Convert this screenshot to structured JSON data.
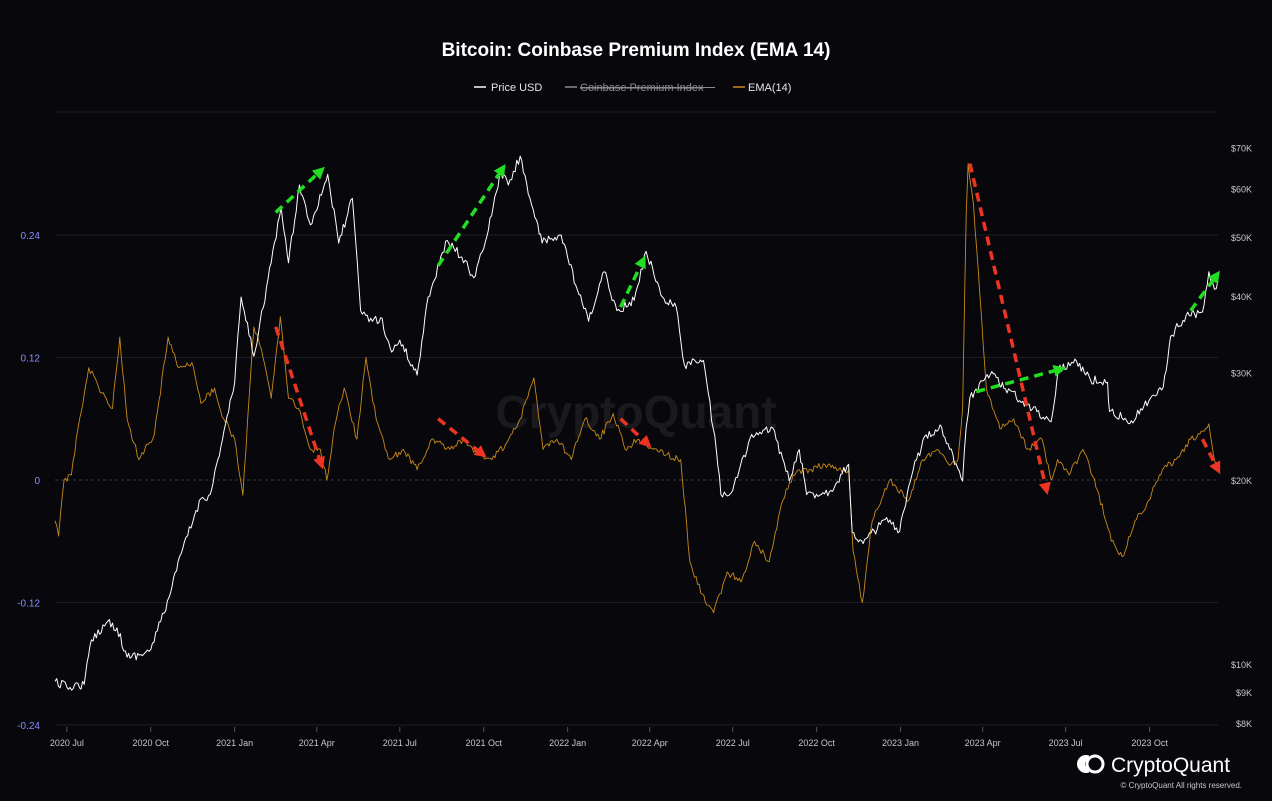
{
  "chart_data": {
    "type": "line",
    "title": "Bitcoin: Coinbase Premium Index (EMA 14)",
    "legend": [
      {
        "label": "Price USD",
        "color": "#ffffff",
        "struck": false
      },
      {
        "label": "Coinbase Premium Index",
        "color": "#8c8c8c",
        "struck": true
      },
      {
        "label": "EMA(14)",
        "color": "#c78a1a",
        "struck": false
      }
    ],
    "legend_position": "top-center",
    "x_ticks": [
      "2020 Jul",
      "2020 Oct",
      "2021 Jan",
      "2021 Apr",
      "2021 Jul",
      "2021 Oct",
      "2022 Jan",
      "2022 Apr",
      "2022 Jul",
      "2022 Oct",
      "2023 Jan",
      "2023 Apr",
      "2023 Jul",
      "2023 Oct"
    ],
    "x_range": [
      "2020-06-18",
      "2023-12-15"
    ],
    "left_axis": {
      "ticks": [
        "0.24",
        "0.12",
        "0",
        "-0.12",
        "-0.24"
      ],
      "tick_values": [
        0.24,
        0.12,
        0,
        -0.12,
        -0.24
      ],
      "range": [
        -0.24,
        0.36
      ],
      "color": "#8a8dff"
    },
    "right_axis": {
      "scale": "log",
      "ticks": [
        "$70K",
        "$60K",
        "$50K",
        "$40K",
        "$30K",
        "$20K",
        "$10K",
        "$9K",
        "$8K"
      ],
      "tick_values": [
        70000,
        60000,
        50000,
        40000,
        30000,
        20000,
        10000,
        9000,
        8000
      ],
      "range": [
        8000,
        78000
      ]
    },
    "grid": true,
    "series": [
      {
        "name": "Price USD",
        "axis": "right",
        "color": "#ffffff",
        "points": [
          [
            "2020-06-18",
            9400
          ],
          [
            "2020-07-01",
            9200
          ],
          [
            "2020-07-20",
            9300
          ],
          [
            "2020-07-28",
            11000
          ],
          [
            "2020-08-15",
            11800
          ],
          [
            "2020-08-25",
            11500
          ],
          [
            "2020-09-05",
            10300
          ],
          [
            "2020-09-20",
            10400
          ],
          [
            "2020-10-01",
            10600
          ],
          [
            "2020-10-21",
            12900
          ],
          [
            "2020-11-05",
            15500
          ],
          [
            "2020-11-25",
            18700
          ],
          [
            "2020-12-05",
            19000
          ],
          [
            "2020-12-17",
            22800
          ],
          [
            "2021-01-01",
            29000
          ],
          [
            "2021-01-08",
            40000
          ],
          [
            "2021-01-22",
            32000
          ],
          [
            "2021-02-10",
            45500
          ],
          [
            "2021-02-21",
            56000
          ],
          [
            "2021-03-01",
            45500
          ],
          [
            "2021-03-13",
            61000
          ],
          [
            "2021-03-25",
            52500
          ],
          [
            "2021-04-13",
            63500
          ],
          [
            "2021-04-25",
            49000
          ],
          [
            "2021-05-10",
            58000
          ],
          [
            "2021-05-19",
            38000
          ],
          [
            "2021-06-01",
            36500
          ],
          [
            "2021-06-10",
            37000
          ],
          [
            "2021-06-22",
            32500
          ],
          [
            "2021-07-01",
            34000
          ],
          [
            "2021-07-20",
            29800
          ],
          [
            "2021-08-01",
            40000
          ],
          [
            "2021-08-22",
            49500
          ],
          [
            "2021-09-07",
            46500
          ],
          [
            "2021-09-20",
            43000
          ],
          [
            "2021-10-01",
            48000
          ],
          [
            "2021-10-20",
            64000
          ],
          [
            "2021-10-28",
            61000
          ],
          [
            "2021-11-10",
            68000
          ],
          [
            "2021-11-26",
            54000
          ],
          [
            "2021-12-04",
            49000
          ],
          [
            "2021-12-25",
            50500
          ],
          [
            "2022-01-10",
            41800
          ],
          [
            "2022-01-24",
            36500
          ],
          [
            "2022-02-10",
            44000
          ],
          [
            "2022-02-24",
            38000
          ],
          [
            "2022-03-15",
            39500
          ],
          [
            "2022-03-28",
            47500
          ],
          [
            "2022-04-15",
            40000
          ],
          [
            "2022-04-30",
            38500
          ],
          [
            "2022-05-09",
            31000
          ],
          [
            "2022-05-30",
            31500
          ],
          [
            "2022-06-13",
            22500
          ],
          [
            "2022-06-18",
            19000
          ],
          [
            "2022-07-01",
            19300
          ],
          [
            "2022-07-20",
            23500
          ],
          [
            "2022-08-14",
            24400
          ],
          [
            "2022-09-01",
            20000
          ],
          [
            "2022-09-12",
            22500
          ],
          [
            "2022-09-20",
            19000
          ],
          [
            "2022-10-15",
            19200
          ],
          [
            "2022-11-05",
            21300
          ],
          [
            "2022-11-09",
            16500
          ],
          [
            "2022-11-21",
            15800
          ],
          [
            "2022-12-15",
            17300
          ],
          [
            "2022-12-31",
            16550
          ],
          [
            "2023-01-15",
            20900
          ],
          [
            "2023-01-29",
            23800
          ],
          [
            "2023-02-15",
            24500
          ],
          [
            "2023-03-10",
            20000
          ],
          [
            "2023-03-14",
            24500
          ],
          [
            "2023-03-18",
            27400
          ],
          [
            "2023-04-11",
            30200
          ],
          [
            "2023-04-26",
            28300
          ],
          [
            "2023-05-15",
            27000
          ],
          [
            "2023-06-15",
            25000
          ],
          [
            "2023-06-23",
            30500
          ],
          [
            "2023-07-13",
            31400
          ],
          [
            "2023-07-28",
            29300
          ],
          [
            "2023-08-16",
            29000
          ],
          [
            "2023-08-18",
            26000
          ],
          [
            "2023-09-11",
            25100
          ],
          [
            "2023-09-30",
            27000
          ],
          [
            "2023-10-16",
            28500
          ],
          [
            "2023-10-24",
            34500
          ],
          [
            "2023-11-10",
            37300
          ],
          [
            "2023-11-28",
            37800
          ],
          [
            "2023-12-05",
            44000
          ],
          [
            "2023-12-11",
            41200
          ],
          [
            "2023-12-15",
            42500
          ]
        ]
      },
      {
        "name": "EMA(14)",
        "axis": "left",
        "color": "#c78a1a",
        "points": [
          [
            "2020-06-18",
            -0.04
          ],
          [
            "2020-06-22",
            -0.055
          ],
          [
            "2020-06-28",
            0.0
          ],
          [
            "2020-07-06",
            0.005
          ],
          [
            "2020-07-15",
            0.06
          ],
          [
            "2020-07-25",
            0.11
          ],
          [
            "2020-08-05",
            0.09
          ],
          [
            "2020-08-20",
            0.07
          ],
          [
            "2020-08-28",
            0.14
          ],
          [
            "2020-09-05",
            0.06
          ],
          [
            "2020-09-18",
            0.02
          ],
          [
            "2020-10-05",
            0.045
          ],
          [
            "2020-10-20",
            0.14
          ],
          [
            "2020-11-01",
            0.11
          ],
          [
            "2020-11-15",
            0.115
          ],
          [
            "2020-11-25",
            0.075
          ],
          [
            "2020-12-10",
            0.09
          ],
          [
            "2020-12-20",
            0.06
          ],
          [
            "2021-01-01",
            0.04
          ],
          [
            "2021-01-10",
            -0.015
          ],
          [
            "2021-01-22",
            0.15
          ],
          [
            "2021-02-01",
            0.12
          ],
          [
            "2021-02-10",
            0.08
          ],
          [
            "2021-02-20",
            0.16
          ],
          [
            "2021-03-01",
            0.08
          ],
          [
            "2021-03-12",
            0.07
          ],
          [
            "2021-03-25",
            0.03
          ],
          [
            "2021-04-05",
            0.03
          ],
          [
            "2021-04-12",
            0.0
          ],
          [
            "2021-04-20",
            0.05
          ],
          [
            "2021-05-01",
            0.09
          ],
          [
            "2021-05-15",
            0.04
          ],
          [
            "2021-05-25",
            0.12
          ],
          [
            "2021-06-05",
            0.06
          ],
          [
            "2021-06-20",
            0.02
          ],
          [
            "2021-07-05",
            0.03
          ],
          [
            "2021-07-20",
            0.01
          ],
          [
            "2021-08-05",
            0.04
          ],
          [
            "2021-08-25",
            0.03
          ],
          [
            "2021-09-10",
            0.04
          ],
          [
            "2021-09-25",
            0.025
          ],
          [
            "2021-10-10",
            0.02
          ],
          [
            "2021-10-25",
            0.035
          ],
          [
            "2021-11-10",
            0.06
          ],
          [
            "2021-11-25",
            0.1
          ],
          [
            "2021-12-05",
            0.03
          ],
          [
            "2021-12-20",
            0.04
          ],
          [
            "2022-01-05",
            0.02
          ],
          [
            "2022-01-20",
            0.06
          ],
          [
            "2022-02-05",
            0.04
          ],
          [
            "2022-02-20",
            0.065
          ],
          [
            "2022-03-05",
            0.03
          ],
          [
            "2022-03-20",
            0.04
          ],
          [
            "2022-04-05",
            0.03
          ],
          [
            "2022-04-20",
            0.025
          ],
          [
            "2022-05-05",
            0.02
          ],
          [
            "2022-05-15",
            -0.08
          ],
          [
            "2022-06-01",
            -0.12
          ],
          [
            "2022-06-10",
            -0.13
          ],
          [
            "2022-06-25",
            -0.09
          ],
          [
            "2022-07-10",
            -0.1
          ],
          [
            "2022-07-25",
            -0.06
          ],
          [
            "2022-08-10",
            -0.08
          ],
          [
            "2022-08-25",
            -0.02
          ],
          [
            "2022-09-05",
            0.005
          ],
          [
            "2022-09-25",
            0.01
          ],
          [
            "2022-10-10",
            0.015
          ],
          [
            "2022-10-25",
            0.01
          ],
          [
            "2022-11-05",
            0.01
          ],
          [
            "2022-11-10",
            -0.07
          ],
          [
            "2022-11-20",
            -0.12
          ],
          [
            "2022-12-01",
            -0.04
          ],
          [
            "2022-12-20",
            0.0
          ],
          [
            "2023-01-10",
            -0.02
          ],
          [
            "2023-01-25",
            0.02
          ],
          [
            "2023-02-10",
            0.03
          ],
          [
            "2023-02-25",
            0.015
          ],
          [
            "2023-03-05",
            0.02
          ],
          [
            "2023-03-10",
            0.07
          ],
          [
            "2023-03-14",
            0.26
          ],
          [
            "2023-03-16",
            0.31
          ],
          [
            "2023-03-22",
            0.27
          ],
          [
            "2023-04-05",
            0.09
          ],
          [
            "2023-04-20",
            0.05
          ],
          [
            "2023-05-05",
            0.06
          ],
          [
            "2023-05-20",
            0.03
          ],
          [
            "2023-06-05",
            0.04
          ],
          [
            "2023-06-15",
            0.0
          ],
          [
            "2023-06-22",
            0.02
          ],
          [
            "2023-07-05",
            0.005
          ],
          [
            "2023-07-20",
            0.03
          ],
          [
            "2023-08-05",
            -0.01
          ],
          [
            "2023-08-20",
            -0.06
          ],
          [
            "2023-09-01",
            -0.075
          ],
          [
            "2023-09-15",
            -0.04
          ],
          [
            "2023-09-30",
            -0.02
          ],
          [
            "2023-10-15",
            0.01
          ],
          [
            "2023-10-30",
            0.02
          ],
          [
            "2023-11-15",
            0.04
          ],
          [
            "2023-11-25",
            0.045
          ],
          [
            "2023-12-05",
            0.055
          ],
          [
            "2023-12-10",
            0.025
          ],
          [
            "2023-12-15",
            0.01
          ]
        ]
      }
    ],
    "annotations": {
      "green_arrows": [
        [
          [
            "2021-02-15",
            55000
          ],
          [
            "2021-04-06",
            64500
          ]
        ],
        [
          [
            "2021-08-12",
            45000
          ],
          [
            "2021-10-22",
            65000
          ]
        ],
        [
          [
            "2022-02-28",
            38500
          ],
          [
            "2022-03-25",
            46000
          ]
        ],
        [
          [
            "2023-03-25",
            28000
          ],
          [
            "2023-06-26",
            30500
          ]
        ],
        [
          [
            "2023-11-15",
            38000
          ],
          [
            "2023-12-14",
            43500
          ]
        ]
      ],
      "red_arrows": [
        [
          [
            "2021-02-15",
            0.15
          ],
          [
            "2021-04-06",
            0.015
          ]
        ],
        [
          [
            "2021-08-12",
            0.06
          ],
          [
            "2021-09-30",
            0.025
          ]
        ],
        [
          [
            "2022-02-28",
            0.06
          ],
          [
            "2022-03-30",
            0.035
          ]
        ],
        [
          [
            "2023-03-18",
            0.31
          ],
          [
            "2023-06-10",
            -0.01
          ]
        ],
        [
          [
            "2023-11-28",
            0.04
          ],
          [
            "2023-12-15",
            0.01
          ]
        ]
      ]
    }
  },
  "watermark": "CryptoQuant",
  "footer": {
    "brand": "CryptoQuant",
    "copyright": "© CryptoQuant All rights reserved."
  },
  "colors": {
    "background": "#07070c",
    "grid": "#1c1c24",
    "price": "#ffffff",
    "ema": "#c78a1a",
    "arrow_up": "#22dd22",
    "arrow_down": "#ee3322"
  }
}
